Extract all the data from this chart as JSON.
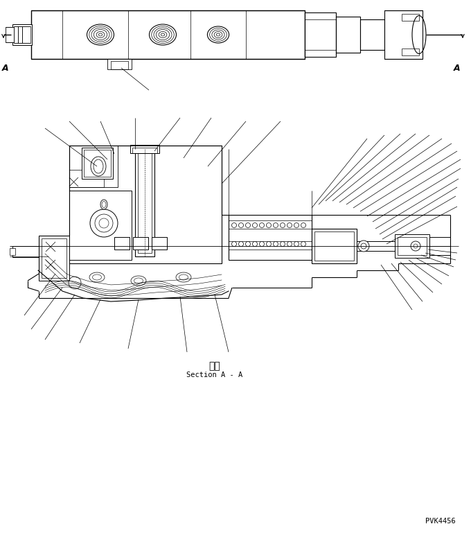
{
  "fig_width": 6.8,
  "fig_height": 7.69,
  "dpi": 100,
  "bg_color": "#ffffff",
  "line_color": "#000000",
  "section_label_japanese": "断面",
  "section_label_english": "Section A - A",
  "ref_number": "PVK4456",
  "label_A_left": "A",
  "label_A_right": "A"
}
